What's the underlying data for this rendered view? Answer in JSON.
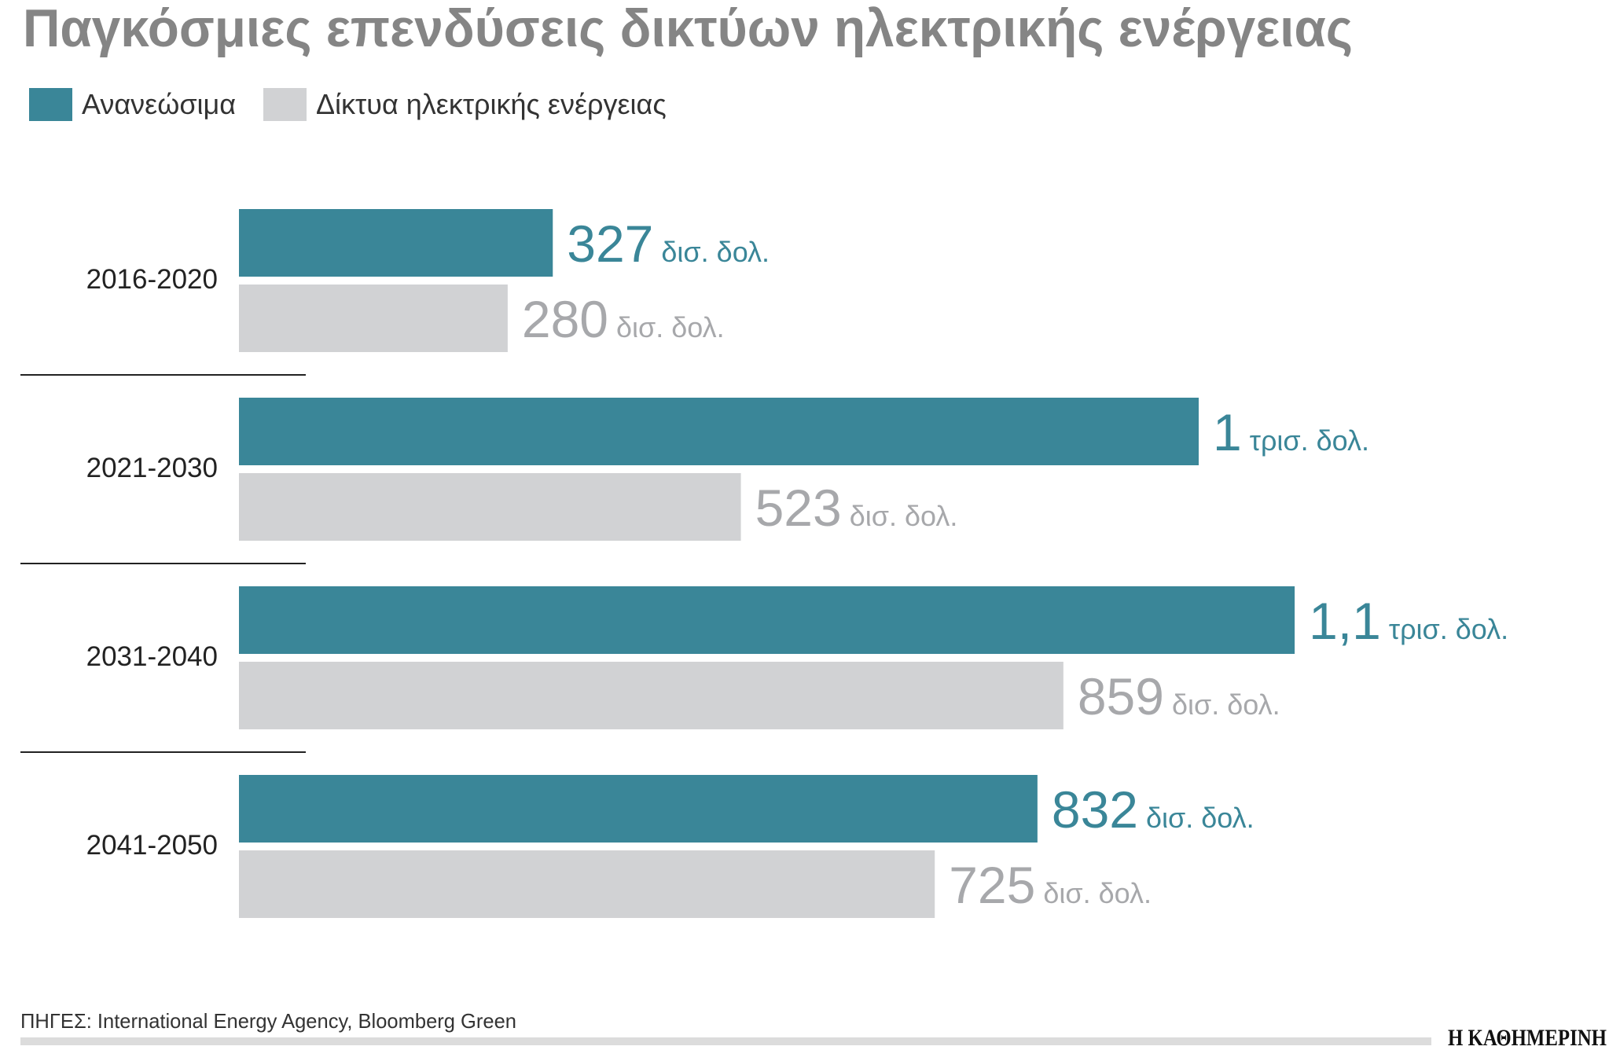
{
  "chart_data": {
    "type": "barh",
    "title": "Παγκόσμιες επενδύσεις δικτύων ηλεκτρικής ενέργειας",
    "categories": [
      "2016-2020",
      "2021-2030",
      "2031-2040",
      "2041-2050"
    ],
    "series": [
      {
        "name": "Ανανεώσιμα",
        "color": "#3a8698",
        "label_color": "#3a8698",
        "values": [
          327,
          1000,
          1100,
          832
        ],
        "value_labels": [
          "327 δισ. δολ.",
          "1 τρισ. δολ.",
          "1,1 τρισ. δολ.",
          "832 δισ. δολ."
        ]
      },
      {
        "name": "Δίκτυα ηλεκτρικής ενέργειας",
        "color": "#d1d2d4",
        "label_color": "#a7a8ab",
        "values": [
          280,
          523,
          859,
          725
        ],
        "value_labels": [
          "280 δισ. δολ.",
          "523 δισ. δολ.",
          "859 δισ. δολ.",
          "725 δισ. δολ."
        ]
      }
    ],
    "source": "ΠΗΓΕΣ: International Energy Agency, Bloomberg Green",
    "brand": "Η ΚΑΘΗΜΕΡΙΝΗ"
  }
}
